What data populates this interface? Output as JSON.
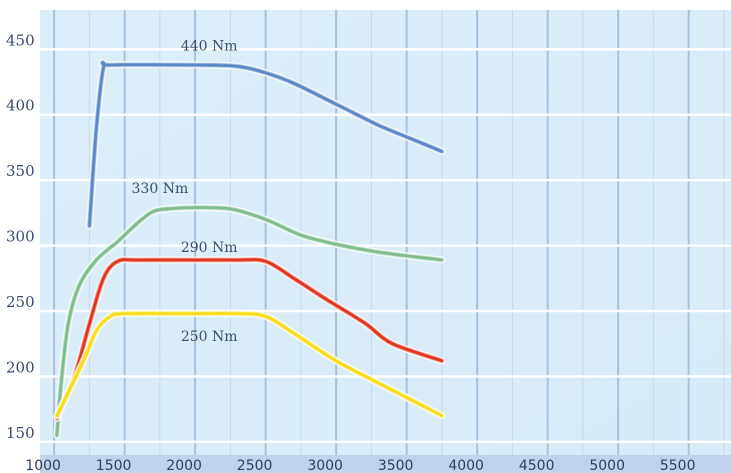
{
  "chart_data": {
    "type": "line",
    "title": "",
    "xlabel": "",
    "ylabel": "",
    "xlim": [
      900,
      5800
    ],
    "ylim": [
      140,
      480
    ],
    "x_ticks": [
      1000,
      1500,
      2000,
      2500,
      3000,
      3500,
      4000,
      4500,
      5000,
      5500
    ],
    "y_ticks": [
      150,
      200,
      250,
      300,
      350,
      400,
      450
    ],
    "grid": true,
    "legend": "none",
    "series": [
      {
        "name": "440 Nm",
        "color": "#5a86c8",
        "points": [
          [
            1250,
            315
          ],
          [
            1300,
            390
          ],
          [
            1350,
            436
          ],
          [
            1400,
            438
          ],
          [
            2000,
            438
          ],
          [
            2300,
            437
          ],
          [
            2500,
            432
          ],
          [
            2700,
            424
          ],
          [
            3000,
            408
          ],
          [
            3300,
            392
          ],
          [
            3500,
            383
          ],
          [
            3750,
            372
          ]
        ]
      },
      {
        "name": "330 Nm",
        "color": "#7fbb8c",
        "points": [
          [
            1020,
            155
          ],
          [
            1050,
            195
          ],
          [
            1100,
            240
          ],
          [
            1180,
            270
          ],
          [
            1300,
            289
          ],
          [
            1450,
            303
          ],
          [
            1600,
            318
          ],
          [
            1700,
            326
          ],
          [
            1800,
            328
          ],
          [
            2000,
            329
          ],
          [
            2250,
            328
          ],
          [
            2500,
            320
          ],
          [
            2750,
            308
          ],
          [
            3000,
            301
          ],
          [
            3300,
            295
          ],
          [
            3750,
            289
          ]
        ]
      },
      {
        "name": "290 Nm",
        "color": "#e0301c",
        "points": [
          [
            1020,
            168
          ],
          [
            1150,
            202
          ],
          [
            1250,
            240
          ],
          [
            1350,
            275
          ],
          [
            1450,
            288
          ],
          [
            1600,
            289
          ],
          [
            2000,
            289
          ],
          [
            2300,
            289
          ],
          [
            2500,
            288
          ],
          [
            2700,
            275
          ],
          [
            2900,
            261
          ],
          [
            3200,
            241
          ],
          [
            3400,
            225
          ],
          [
            3750,
            212
          ]
        ]
      },
      {
        "name": "250 Nm",
        "color": "#f7de16",
        "points": [
          [
            1020,
            170
          ],
          [
            1200,
            210
          ],
          [
            1300,
            235
          ],
          [
            1400,
            246
          ],
          [
            1500,
            248
          ],
          [
            2000,
            248
          ],
          [
            2300,
            248
          ],
          [
            2500,
            246
          ],
          [
            2700,
            233
          ],
          [
            3000,
            212
          ],
          [
            3300,
            195
          ],
          [
            3750,
            170
          ]
        ]
      }
    ],
    "labels": [
      {
        "text": "440 Nm",
        "x": 2100,
        "y": 449,
        "series": "440 Nm"
      },
      {
        "text": "330 Nm",
        "x": 1750,
        "y": 340,
        "series": "330 Nm"
      },
      {
        "text": "290 Nm",
        "x": 2100,
        "y": 295,
        "series": "290 Nm"
      },
      {
        "text": "250 Nm",
        "x": 2100,
        "y": 227,
        "series": "250 Nm"
      }
    ]
  }
}
